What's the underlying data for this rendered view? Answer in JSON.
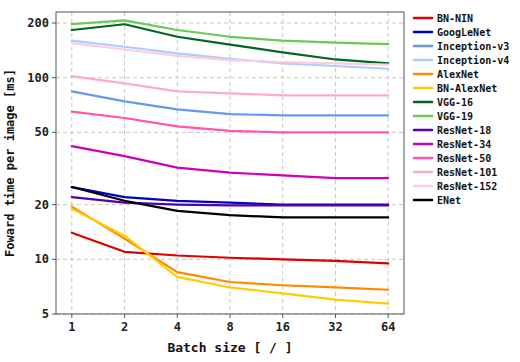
{
  "chart_data": {
    "type": "line",
    "xlabel": "Batch size [ / ]",
    "ylabel": "Foward time per image [ms]",
    "categories": [
      "1",
      "2",
      "4",
      "8",
      "16",
      "32",
      "64"
    ],
    "series": [
      {
        "name": "BN-NIN",
        "color": "#dd0000",
        "values": [
          14,
          11,
          10.5,
          10.2,
          10.0,
          9.8,
          9.5
        ]
      },
      {
        "name": "GoogLeNet",
        "color": "#0000cc",
        "values": [
          25,
          22,
          21,
          20.5,
          20,
          20,
          20
        ]
      },
      {
        "name": "Inception-v3",
        "color": "#6699ee",
        "values": [
          84,
          74,
          67,
          63,
          62,
          62,
          62
        ]
      },
      {
        "name": "Inception-v4",
        "color": "#aaccff",
        "values": [
          160,
          148,
          136,
          127,
          120,
          116,
          112
        ]
      },
      {
        "name": "AlexNet",
        "color": "#ff8800",
        "values": [
          19.5,
          13,
          8.5,
          7.5,
          7.2,
          7.0,
          6.8
        ]
      },
      {
        "name": "BN-AlexNet",
        "color": "#ffcc00",
        "values": [
          19.0,
          13.5,
          8.0,
          7.0,
          6.5,
          6.0,
          5.7
        ]
      },
      {
        "name": "VGG-16",
        "color": "#006622",
        "values": [
          183,
          197,
          168,
          152,
          138,
          126,
          120
        ]
      },
      {
        "name": "VGG-19",
        "color": "#66cc55",
        "values": [
          197,
          207,
          183,
          168,
          160,
          156,
          153
        ]
      },
      {
        "name": "ResNet-18",
        "color": "#5500aa",
        "values": [
          22,
          20.5,
          20,
          19.8,
          19.8,
          19.8,
          19.8
        ]
      },
      {
        "name": "ResNet-34",
        "color": "#cc00bb",
        "values": [
          42,
          37,
          32,
          30,
          29,
          28,
          28
        ]
      },
      {
        "name": "ResNet-50",
        "color": "#ff55aa",
        "values": [
          65,
          60,
          54,
          51,
          50,
          50,
          50
        ]
      },
      {
        "name": "ResNet-101",
        "color": "#ffaacc",
        "values": [
          102,
          93,
          84,
          82,
          80,
          80,
          80
        ]
      },
      {
        "name": "ResNet-152",
        "color": "#ffccdd",
        "values": [
          155,
          143,
          132,
          125,
          122,
          120,
          118
        ]
      },
      {
        "name": "ENet",
        "color": "#000000",
        "values": [
          25,
          21,
          18.5,
          17.5,
          17,
          17,
          17
        ]
      }
    ],
    "ylim": [
      5,
      230
    ],
    "yticks": [
      5,
      10,
      20,
      50,
      100,
      200
    ],
    "log": "y",
    "grid": true,
    "legend": "upper right"
  }
}
